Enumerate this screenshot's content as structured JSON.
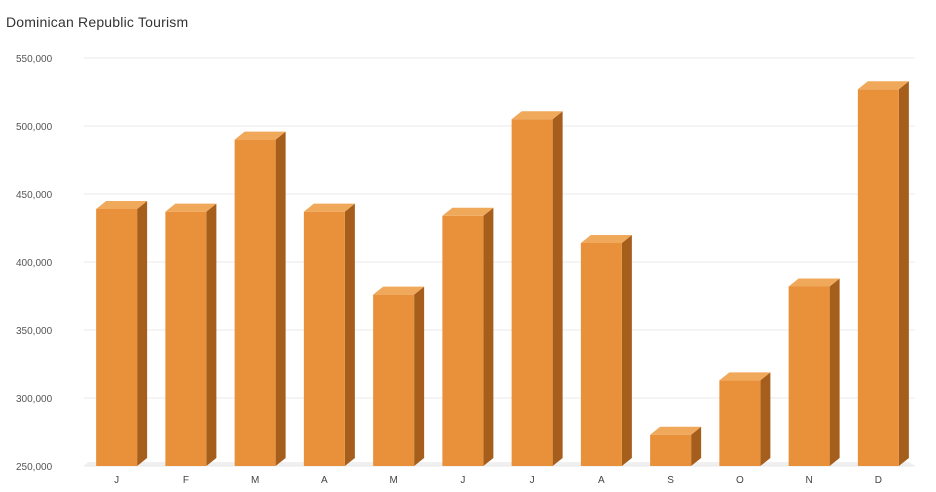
{
  "chart_data": {
    "type": "bar",
    "title": "Dominican Republic Tourism",
    "xlabel": "",
    "ylabel": "",
    "categories": [
      "J",
      "F",
      "M",
      "A",
      "M",
      "J",
      "J",
      "A",
      "S",
      "O",
      "N",
      "D"
    ],
    "values": [
      439000,
      437000,
      490000,
      437000,
      376000,
      434000,
      505000,
      414000,
      273000,
      313000,
      382000,
      527000
    ],
    "ylim": [
      250000,
      550000
    ],
    "yticks": [
      250000,
      300000,
      350000,
      400000,
      450000,
      500000,
      550000
    ],
    "ytick_labels": [
      "250,000",
      "300,000",
      "350,000",
      "400,000",
      "450,000",
      "500,000",
      "550,000"
    ],
    "grid": true,
    "bar_style": "3d",
    "colors": {
      "bar_front": "#e8913a",
      "bar_top": "#f0a85a",
      "bar_side": "#a65e1c",
      "grid": "#e9e9e9",
      "floor": "#f0f0f0"
    }
  }
}
